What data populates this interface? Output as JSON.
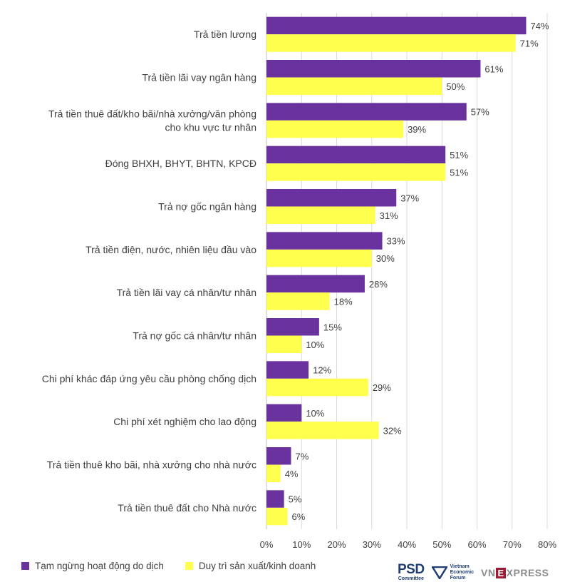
{
  "chart_data": {
    "type": "bar",
    "orientation": "horizontal",
    "categories": [
      [
        "Trả tiền lương"
      ],
      [
        "Trả tiền lãi vay ngân hàng"
      ],
      [
        "Trả tiền thuê đất/kho bãi/nhà xưởng/văn phòng",
        "cho khu vực tư nhân"
      ],
      [
        "Đóng BHXH, BHYT, BHTN, KPCĐ"
      ],
      [
        "Trả nợ gốc ngân hàng"
      ],
      [
        "Trả tiền điện, nước, nhiên liệu đầu vào"
      ],
      [
        "Trả tiền lãi vay cá nhân/tư nhân"
      ],
      [
        "Trả nợ gốc cá nhân/tư nhân"
      ],
      [
        "Chi phí khác đáp ứng yêu cầu phòng chống dịch"
      ],
      [
        "Chi phí xét nghiệm cho lao động"
      ],
      [
        "Trả tiền thuê kho bãi, nhà xưởng cho nhà nước"
      ],
      [
        "Trả tiền thuê đất cho Nhà nước"
      ]
    ],
    "series": [
      {
        "name": "Tạm ngừng hoạt động do dịch",
        "color": "#6a329f",
        "values": [
          74,
          61,
          57,
          51,
          37,
          33,
          28,
          15,
          12,
          10,
          7,
          5
        ]
      },
      {
        "name": "Duy trì sản xuất/kinh doanh",
        "color": "#ffff4d",
        "values": [
          71,
          50,
          39,
          51,
          31,
          30,
          18,
          10,
          29,
          32,
          4,
          6
        ]
      }
    ],
    "xlim": [
      0,
      80
    ],
    "xticks": [
      "0%",
      "10%",
      "20%",
      "30%",
      "40%",
      "50%",
      "60%",
      "70%",
      "80%"
    ],
    "value_suffix": "%",
    "grid": "vertical",
    "legend_position": "bottom-left"
  },
  "legend": {
    "series1": "Tạm ngừng hoạt động do dịch",
    "series2": "Duy trì sản xuất/kinh doanh"
  },
  "logos": {
    "psd": "PSD",
    "psd_sub": "Committee",
    "vef_line1": "Vietnam",
    "vef_line2": "Economic",
    "vef_line3": "Forum",
    "vnexpress_pre": "VN",
    "vnexpress_e": "E",
    "vnexpress_post": "XPRESS"
  }
}
